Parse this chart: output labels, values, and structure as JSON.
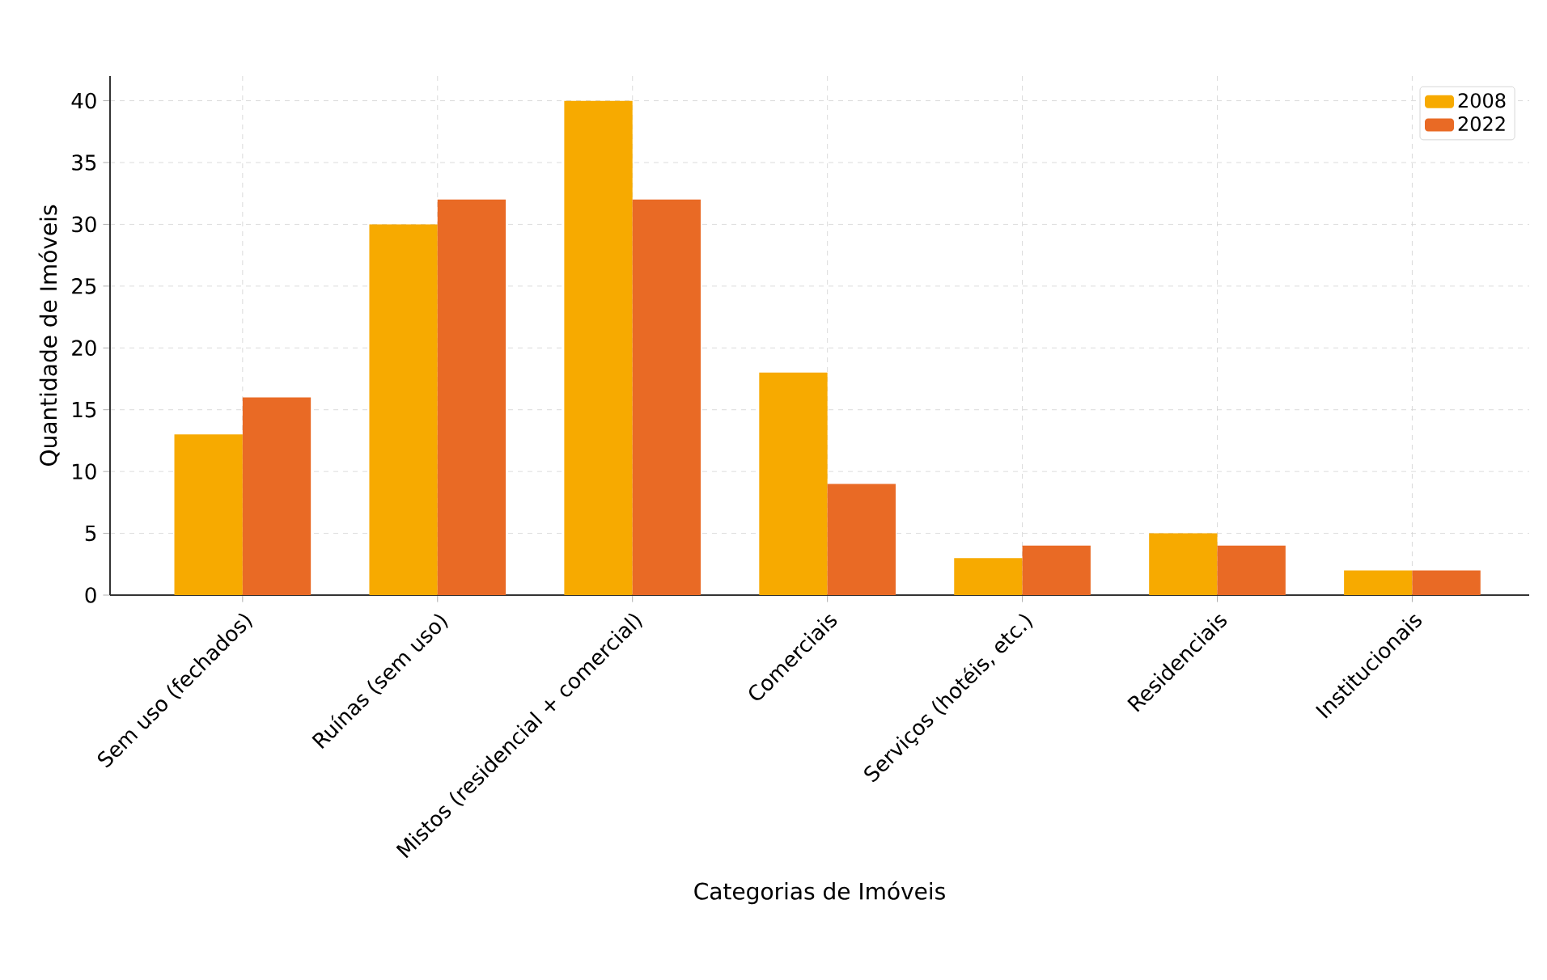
{
  "chart_data": {
    "type": "bar",
    "xlabel": "Categorias de Imóveis",
    "ylabel": "Quantidade de Imóveis",
    "categories": [
      "Sem uso (fechados)",
      "Ruínas (sem uso)",
      "Mistos (residencial + comercial)",
      "Comerciais",
      "Serviços (hotéis, etc.)",
      "Residenciais",
      "Institucionais"
    ],
    "series": [
      {
        "name": "2008",
        "color": "#f7aa00",
        "values": [
          13,
          30,
          40,
          18,
          3,
          5,
          2
        ]
      },
      {
        "name": "2022",
        "color": "#e96a25",
        "values": [
          16,
          32,
          32,
          9,
          4,
          4,
          2
        ]
      }
    ],
    "ylim": [
      0,
      42
    ],
    "yticks": [
      0,
      5,
      10,
      15,
      20,
      25,
      30,
      35,
      40
    ],
    "grid": true,
    "legend": "top right"
  }
}
